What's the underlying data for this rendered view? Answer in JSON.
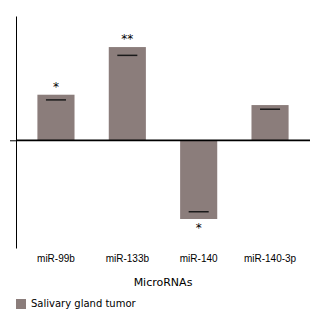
{
  "chart_data": {
    "type": "bar",
    "categories": [
      "miR-99b",
      "miR-133b",
      "miR-140",
      "miR-140-3p"
    ],
    "series": [
      {
        "name": "Salivary gland tumor",
        "color": "#8B7D7B",
        "values": [
          2.2,
          4.5,
          -3.8,
          1.7
        ],
        "error_lines": [
          1.95,
          4.1,
          -3.45,
          1.5
        ]
      }
    ],
    "annotations": [
      "*",
      "**",
      "*",
      null
    ],
    "xlabel": "MicroRNAs",
    "ylim": [
      -5.2,
      6.0
    ],
    "yticks": [
      0
    ],
    "tick_labels": "x",
    "grid": false,
    "legend": "lower left"
  }
}
